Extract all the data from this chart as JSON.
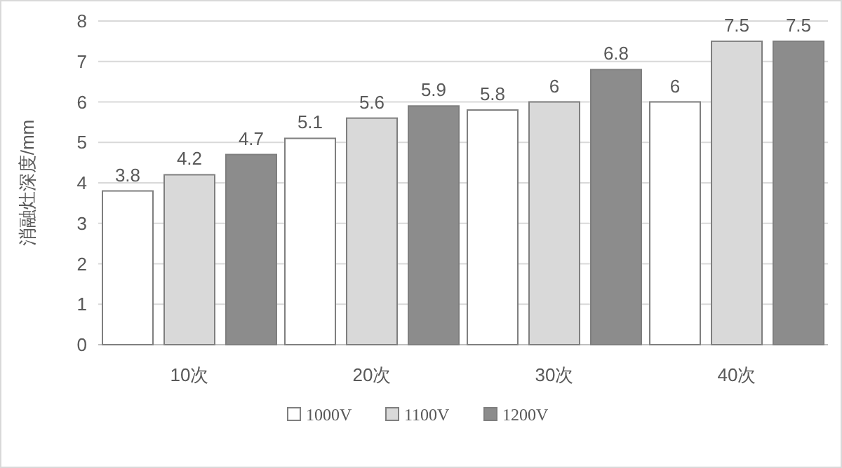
{
  "chart_data": {
    "type": "bar",
    "ylabel": "消融灶深度/mm",
    "categories": [
      "10次",
      "20次",
      "30次",
      "40次"
    ],
    "series": [
      {
        "name": "1000V",
        "color": "#ffffff",
        "values": [
          3.8,
          5.1,
          5.8,
          6
        ]
      },
      {
        "name": "1100V",
        "color": "#d9d9d9",
        "values": [
          4.2,
          5.6,
          6,
          7.5
        ]
      },
      {
        "name": "1200V",
        "color": "#8c8c8c",
        "values": [
          4.7,
          5.9,
          6.8,
          7.5
        ]
      }
    ],
    "ylim": [
      0,
      8
    ],
    "yticks": [
      0,
      1,
      2,
      3,
      4,
      5,
      6,
      7,
      8
    ],
    "grid": "y",
    "legend": "bottom",
    "data_labels": true
  }
}
